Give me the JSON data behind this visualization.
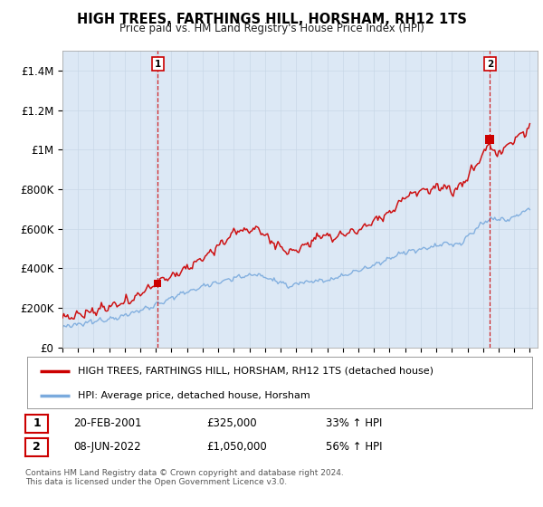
{
  "title": "HIGH TREES, FARTHINGS HILL, HORSHAM, RH12 1TS",
  "subtitle": "Price paid vs. HM Land Registry's House Price Index (HPI)",
  "background_color": "#e8f0f8",
  "plot_bg_color": "#dce8f5",
  "ylim": [
    0,
    1500000
  ],
  "yticks": [
    0,
    200000,
    400000,
    600000,
    800000,
    1000000,
    1200000,
    1400000
  ],
  "ytick_labels": [
    "£0",
    "£200K",
    "£400K",
    "£600K",
    "£800K",
    "£1M",
    "£1.2M",
    "£1.4M"
  ],
  "x_start_year": 1995,
  "x_end_year": 2025,
  "sale1_date": "20-FEB-2001",
  "sale1_price": 325000,
  "sale1_hpi_pct": "33%",
  "sale1_label": "1",
  "sale1_x": 2001.12,
  "sale2_date": "08-JUN-2022",
  "sale2_price": 1050000,
  "sale2_hpi_pct": "56%",
  "sale2_label": "2",
  "sale2_x": 2022.44,
  "line1_color": "#cc0000",
  "line2_color": "#7aaadd",
  "line1_label": "HIGH TREES, FARTHINGS HILL, HORSHAM, RH12 1TS (detached house)",
  "line2_label": "HPI: Average price, detached house, Horsham",
  "footer": "Contains HM Land Registry data © Crown copyright and database right 2024.\nThis data is licensed under the Open Government Licence v3.0.",
  "grid_color": "#c8d8e8",
  "vline_color": "#cc0000"
}
